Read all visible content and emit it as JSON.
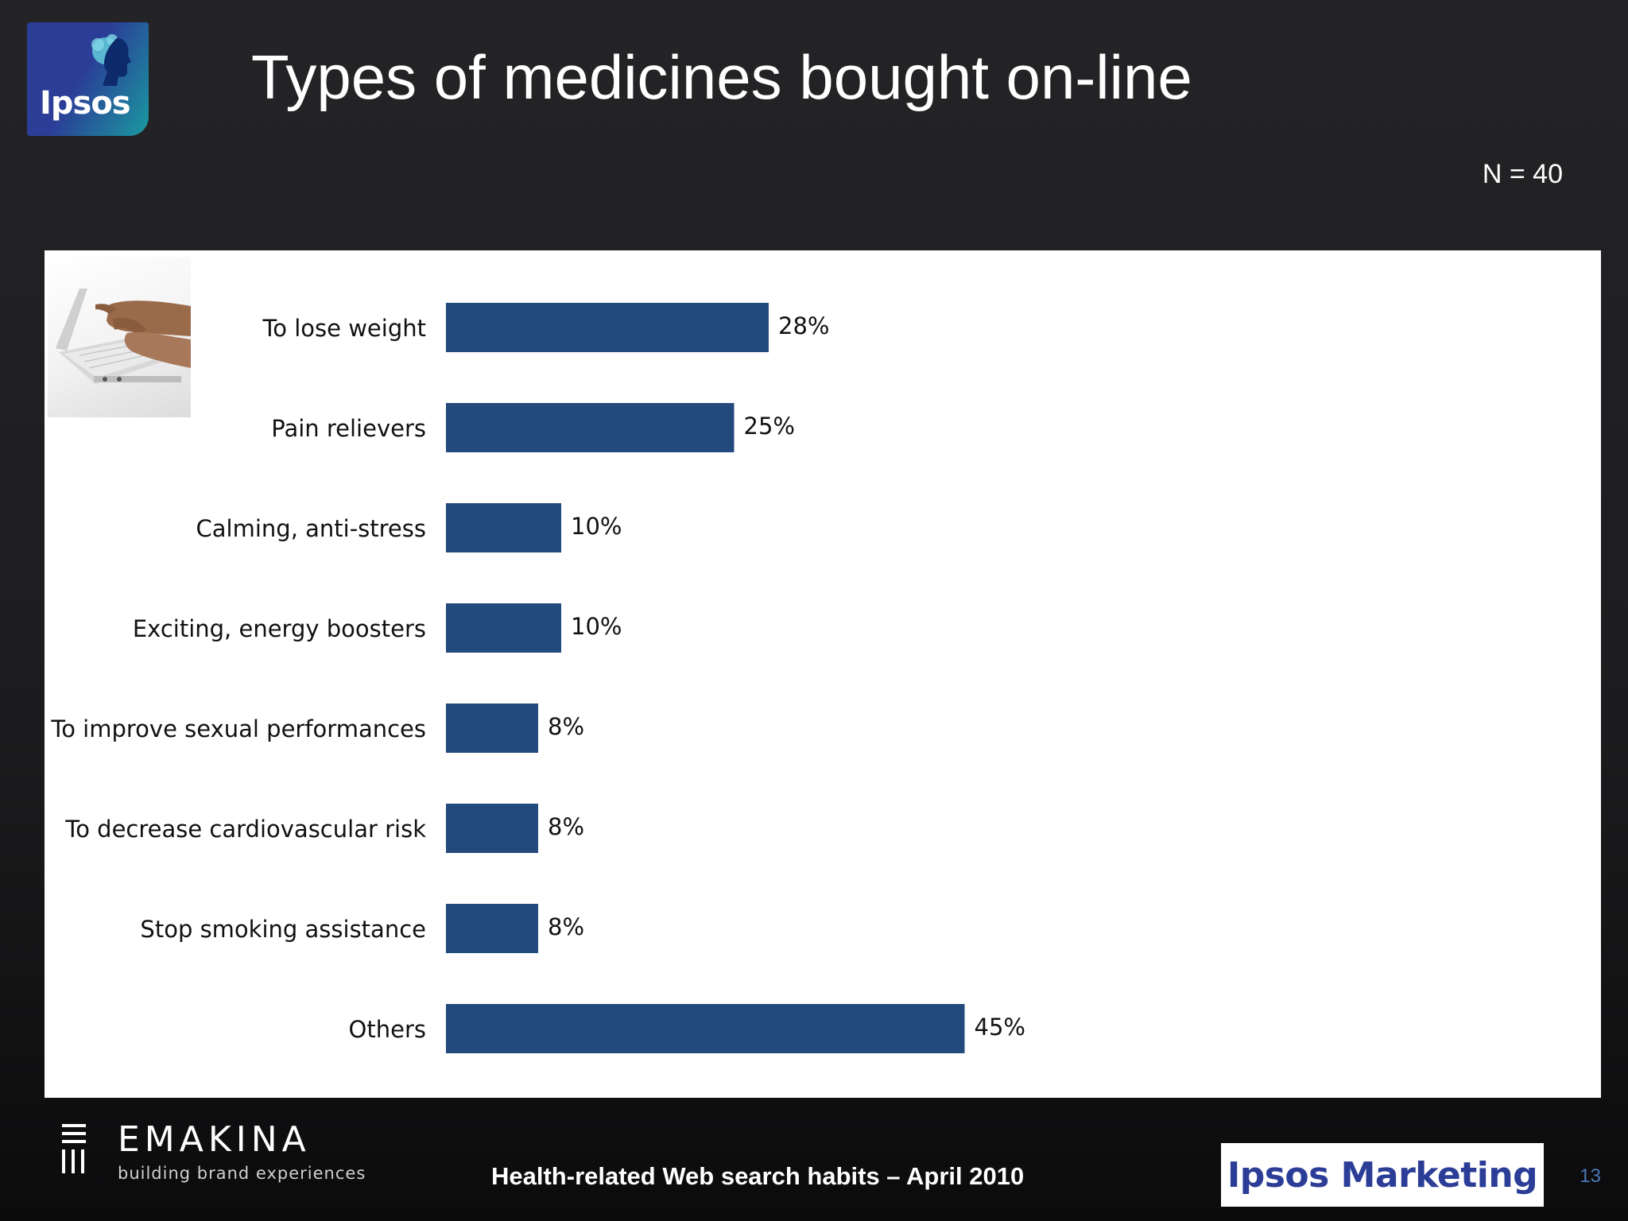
{
  "slide": {
    "title": "Types of medicines bought on-line",
    "sample_size": "N = 40",
    "page_number": "13"
  },
  "branding": {
    "ipsos_logo_text": "Ipsos",
    "emakina_name": "EMAKINA",
    "emakina_tagline": "building brand experiences",
    "footer_caption": "Health-related Web search habits – April 2010",
    "ipsos_marketing": "Ipsos Marketing"
  },
  "colors": {
    "bar": "#234a7c",
    "panel": "#ffffff",
    "ipsos_blue": "#2b3d97",
    "ipsos_teal": "#1a9aa0",
    "page_number": "#4a78b8"
  },
  "icons": {
    "photo": "laptop-typing-photo",
    "emakina_mark": "emakina-bars-icon"
  },
  "chart_data": {
    "type": "bar",
    "orientation": "horizontal",
    "categories": [
      "To lose weight",
      "Pain relievers",
      "Calming, anti-stress",
      "Exciting, energy boosters",
      "To improve sexual performances",
      "To decrease cardiovascular risk",
      "Stop smoking assistance",
      "Others"
    ],
    "values": [
      28,
      25,
      10,
      10,
      8,
      8,
      8,
      45
    ],
    "data_labels": [
      "28%",
      "25%",
      "10%",
      "10%",
      "8%",
      "8%",
      "8%",
      "45%"
    ],
    "unit": "%",
    "xlim": [
      0,
      100
    ],
    "grid": false,
    "legend": "none"
  }
}
